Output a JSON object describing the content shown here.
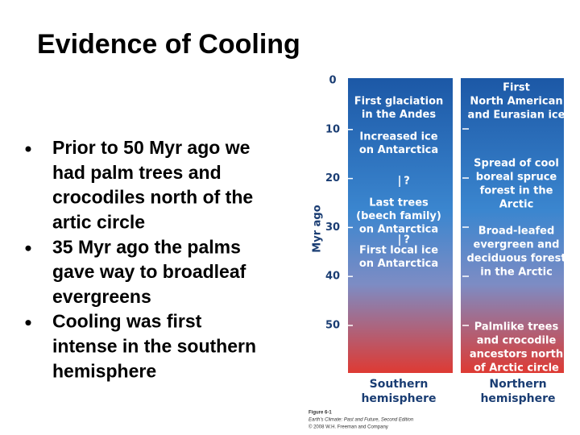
{
  "title": "Evidence of Cooling",
  "bullets": [
    [
      "Prior to 50 Myr ago we",
      "had palm trees and",
      "crocodiles north of the",
      "artic circle"
    ],
    [
      "35 Myr ago the palms",
      "gave way to broadleaf",
      "evergreens"
    ],
    [
      "Cooling was first",
      "intense in the southern",
      "hemisphere"
    ]
  ],
  "figure": {
    "axis_label": "Myr ago",
    "ticks": [
      "0",
      "10",
      "20",
      "30",
      "40",
      "50"
    ],
    "southern": [
      [
        "First glaciation",
        "in the Andes"
      ],
      [
        "Increased ice",
        "on Antarctica"
      ],
      [
        "?"
      ],
      [
        "Last trees",
        "(beech family)",
        "on Antarctica"
      ],
      [
        "?"
      ],
      [
        "First local ice",
        "on Antarctica"
      ]
    ],
    "northern": [
      [
        "First",
        "North American",
        "and Eurasian ice"
      ],
      [
        "Spread of cool",
        "boreal spruce",
        "forest in the",
        "Arctic"
      ],
      [
        "Broad-leafed",
        "evergreen and",
        "deciduous forest",
        "in the Arctic"
      ],
      [
        "Palmlike trees",
        "and crocodile",
        "ancestors north",
        "of Arctic circle"
      ]
    ],
    "southern_label": [
      "Southern",
      "hemisphere"
    ],
    "northern_label": [
      "Northern",
      "hemisphere"
    ],
    "caption": [
      "Figure 6-1",
      "Earth's Climate: Past and Future, Second Edition",
      "© 2008 W.H. Freeman and Company"
    ]
  }
}
